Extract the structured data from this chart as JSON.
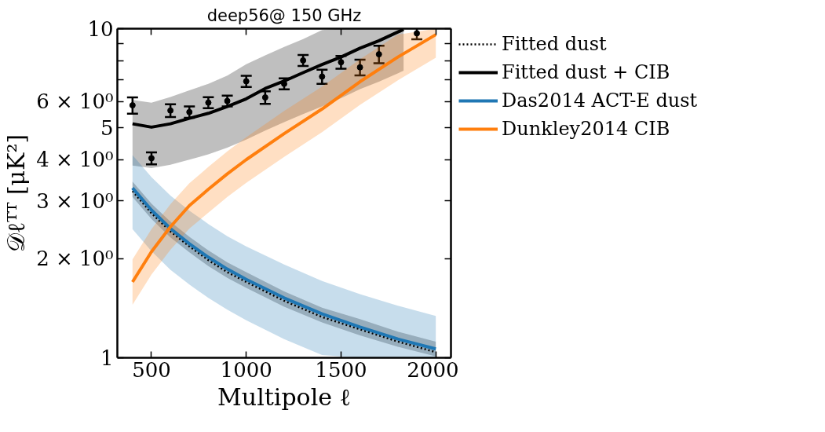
{
  "chart_data": {
    "type": "line",
    "title": "deep56@ 150 GHz",
    "xlabel": "Multipole ℓ",
    "ylabel": "𝒟ℓᵀᵀ [μK²]",
    "xlim": [
      320,
      2080
    ],
    "xticks": [
      500,
      1000,
      1500,
      2000
    ],
    "ylim": [
      1,
      10
    ],
    "yticks": [
      1,
      {
        "value": 2,
        "label": "2 × 10⁰"
      },
      {
        "value": 3,
        "label": "3 × 10⁰"
      },
      {
        "value": 4,
        "label": "4 × 10⁰"
      },
      5,
      {
        "value": 6,
        "label": "6 × 10⁰"
      },
      {
        "value": 7,
        "label": null
      },
      {
        "value": 8,
        "label": null
      },
      {
        "value": 9,
        "label": null
      },
      10
    ],
    "log": "y",
    "grid": false,
    "legend": "right",
    "series": [
      {
        "type": "scatter",
        "marker": "circle",
        "color": "#000000",
        "x": [
          400,
          500,
          600,
          700,
          800,
          900,
          1000,
          1100,
          1200,
          1300,
          1400,
          1500,
          1600,
          1700,
          1900
        ],
        "values": [
          5.85,
          4.04,
          5.64,
          5.58,
          5.96,
          6.03,
          6.92,
          6.18,
          6.8,
          8.01,
          7.15,
          7.91,
          7.63,
          8.36,
          9.68
        ],
        "errors": [
          0.33,
          0.17,
          0.25,
          0.22,
          0.23,
          0.23,
          0.27,
          0.27,
          0.26,
          0.31,
          0.35,
          0.35,
          0.42,
          0.51,
          0.4
        ]
      },
      {
        "name": "Fitted dust",
        "color": "#000000",
        "line_style": "dotted",
        "x": [
          400,
          500,
          600,
          700,
          800,
          900,
          1000,
          1200,
          1400,
          1600,
          1800,
          2000
        ],
        "values": [
          3.21,
          2.75,
          2.42,
          2.18,
          1.98,
          1.82,
          1.7,
          1.49,
          1.33,
          1.22,
          1.12,
          1.04
        ],
        "upper": [
          3.43,
          2.94,
          2.59,
          2.33,
          2.12,
          1.95,
          1.82,
          1.59,
          1.42,
          1.31,
          1.2,
          1.12
        ],
        "lower": [
          3.08,
          2.64,
          2.32,
          2.09,
          1.9,
          1.75,
          1.63,
          1.43,
          1.28,
          1.17,
          1.08,
          1.01
        ]
      },
      {
        "name": "Fitted dust + CIB",
        "color": "#000000",
        "x": [
          400,
          500,
          600,
          700,
          800,
          900,
          1000,
          1100,
          1200,
          1300,
          1400,
          1500,
          1600,
          1700,
          1830
        ],
        "values": [
          5.14,
          5.02,
          5.14,
          5.34,
          5.53,
          5.8,
          6.12,
          6.58,
          6.93,
          7.35,
          7.78,
          8.2,
          8.72,
          9.19,
          9.95
        ],
        "upper": [
          6.07,
          5.96,
          6.2,
          6.5,
          6.8,
          7.2,
          7.8,
          8.3,
          8.8,
          9.3,
          9.9,
          10,
          10,
          10,
          10
        ],
        "lower": [
          3.84,
          3.77,
          3.86,
          4.0,
          4.15,
          4.35,
          4.6,
          4.9,
          5.2,
          5.5,
          5.8,
          6.15,
          6.55,
          6.9,
          7.45
        ]
      },
      {
        "name": "Das2014 ACT-E dust",
        "color": "#1f77b4",
        "x": [
          400,
          500,
          600,
          700,
          800,
          900,
          1000,
          1200,
          1400,
          1600,
          1800,
          2000
        ],
        "values": [
          3.28,
          2.81,
          2.47,
          2.22,
          2.02,
          1.86,
          1.73,
          1.52,
          1.36,
          1.24,
          1.14,
          1.064
        ],
        "upper": [
          4.13,
          3.54,
          3.11,
          2.8,
          2.55,
          2.34,
          2.18,
          1.92,
          1.71,
          1.56,
          1.44,
          1.34
        ],
        "lower": [
          2.46,
          2.11,
          1.85,
          1.67,
          1.52,
          1.4,
          1.3,
          1.14,
          1.02,
          1,
          1,
          1
        ]
      },
      {
        "name": "Dunkley2014 CIB",
        "color": "#ff7f0e",
        "x": [
          400,
          500,
          600,
          700,
          800,
          900,
          1000,
          1200,
          1400,
          1600,
          1800,
          2000
        ],
        "values": [
          1.7,
          2.1,
          2.5,
          2.9,
          3.25,
          3.62,
          4.0,
          4.8,
          5.7,
          6.9,
          8.2,
          9.59
        ],
        "upper": [
          1.99,
          2.46,
          2.93,
          3.39,
          3.8,
          4.24,
          4.68,
          5.62,
          6.67,
          8.07,
          9.59,
          10
        ],
        "lower": [
          1.45,
          1.79,
          2.13,
          2.47,
          2.76,
          3.08,
          3.4,
          4.08,
          4.85,
          5.87,
          6.97,
          8.16
        ]
      }
    ]
  }
}
